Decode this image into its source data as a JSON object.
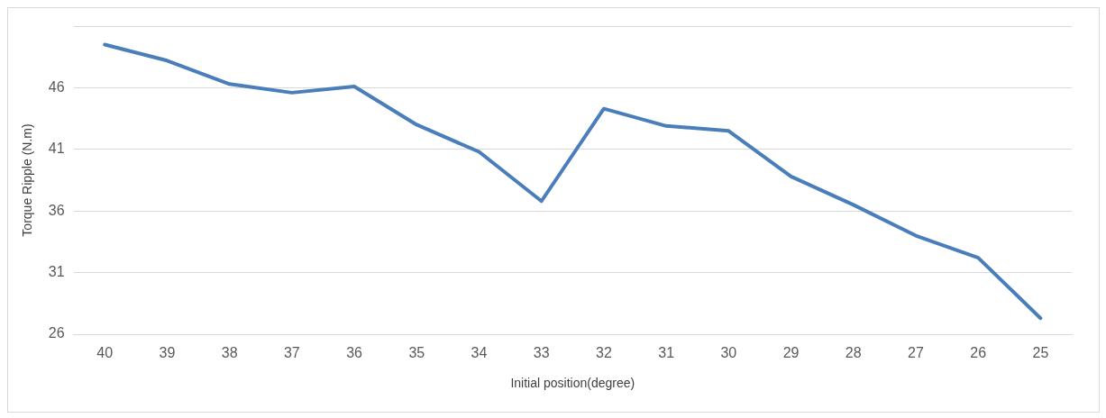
{
  "chart_data": {
    "type": "line",
    "xlabel": "Initial position(degree)",
    "ylabel": "Torque Ripple (N.m)",
    "categories": [
      "40",
      "39",
      "38",
      "37",
      "36",
      "35",
      "34",
      "33",
      "32",
      "31",
      "30",
      "29",
      "28",
      "27",
      "26",
      "25"
    ],
    "series": [
      {
        "color": "#4a7ebb",
        "values": [
          49.5,
          48.2,
          46.3,
          45.6,
          46.1,
          43.0,
          40.8,
          36.8,
          44.3,
          42.9,
          42.5,
          38.8,
          36.5,
          34.0,
          32.2,
          27.3
        ]
      }
    ],
    "ylim": [
      26,
      51
    ],
    "yticks": [
      26,
      31,
      36,
      41,
      46,
      {
        "value": 51,
        "label": null
      }
    ],
    "grid": "y",
    "legend": false,
    "marker": "none",
    "line_style": "solid"
  }
}
